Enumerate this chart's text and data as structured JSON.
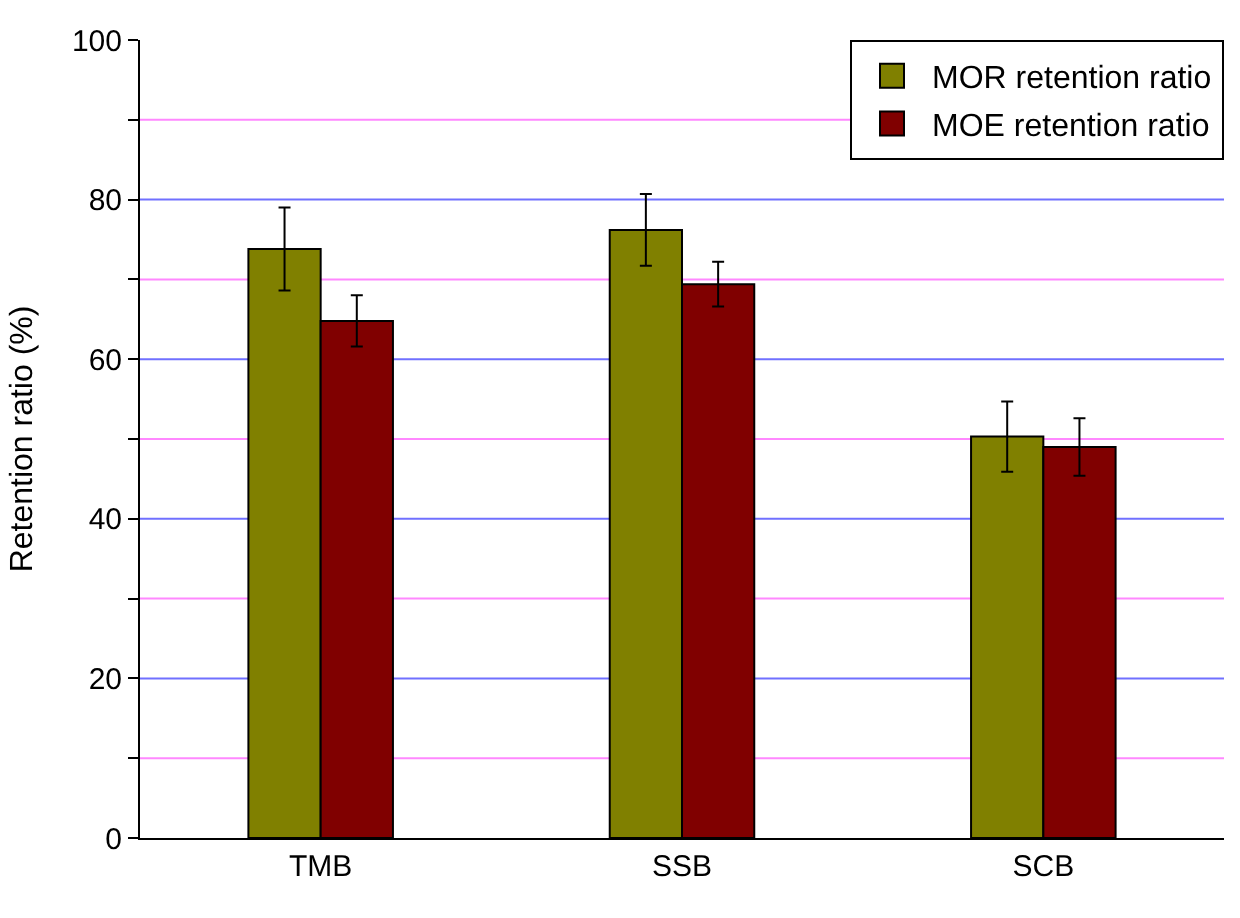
{
  "chart_data": {
    "type": "bar",
    "ylabel": "Retention ratio (%)",
    "categories": [
      "TMB",
      "SSB",
      "SCB"
    ],
    "series": [
      {
        "name": "MOR retention ratio",
        "color": "#808000",
        "values": [
          73.8,
          76.2,
          50.3
        ],
        "errors": [
          5.2,
          4.5,
          4.4
        ]
      },
      {
        "name": "MOE retention ratio",
        "color": "#800000",
        "values": [
          64.8,
          69.4,
          49.0
        ],
        "errors": [
          3.2,
          2.8,
          3.6
        ]
      }
    ],
    "ylim": [
      0,
      100
    ],
    "yticks": [
      0,
      {
        "value": 10,
        "label": null
      },
      20,
      {
        "value": 30,
        "label": null
      },
      40,
      {
        "value": 50,
        "label": null
      },
      60,
      {
        "value": 70,
        "label": null
      },
      80,
      {
        "value": 90,
        "label": null
      },
      100
    ],
    "grid": "y",
    "legend": "top right"
  }
}
